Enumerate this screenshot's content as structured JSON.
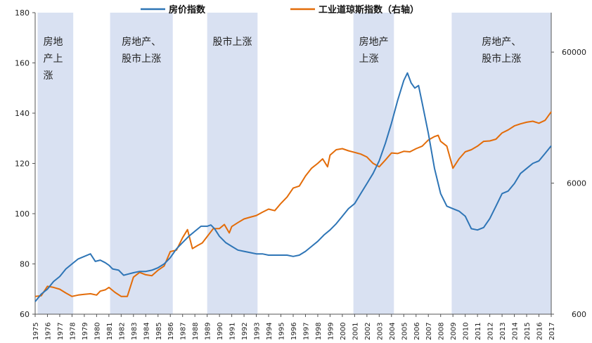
{
  "chart_data": {
    "type": "line",
    "x_categories": [
      "1975",
      "1976",
      "1977",
      "1978",
      "1979",
      "1980",
      "1981",
      "1982",
      "1983",
      "1984",
      "1985",
      "1986",
      "1987",
      "1988",
      "1989",
      "1990",
      "1991",
      "1992",
      "1993",
      "1994",
      "1995",
      "1996",
      "1997",
      "1998",
      "1999",
      "2000",
      "2001",
      "2002",
      "2003",
      "2004",
      "2005",
      "2006",
      "2007",
      "2008",
      "2009",
      "2010",
      "2011",
      "2012",
      "2013",
      "2014",
      "2015",
      "2016",
      "2017"
    ],
    "left_axis": {
      "min": 60,
      "max": 180,
      "ticks": [
        "60",
        "80",
        "100",
        "120",
        "140",
        "160",
        "180"
      ]
    },
    "right_axis": {
      "scale": "log",
      "min": 600,
      "max": 120000,
      "ticks": [
        "600",
        "6000",
        "60000"
      ]
    },
    "legend_position": "top",
    "series": [
      {
        "name": "房价指数",
        "axis": "left",
        "color": "#2e75b6",
        "points": [
          [
            1975.0,
            65
          ],
          [
            1975.5,
            68
          ],
          [
            1976.0,
            70
          ],
          [
            1976.5,
            73
          ],
          [
            1977.0,
            75
          ],
          [
            1977.5,
            78
          ],
          [
            1978.0,
            80
          ],
          [
            1978.5,
            82
          ],
          [
            1979.0,
            83
          ],
          [
            1979.5,
            84
          ],
          [
            1979.9,
            81
          ],
          [
            1980.3,
            81.5
          ],
          [
            1980.7,
            80.5
          ],
          [
            1981.0,
            79.5
          ],
          [
            1981.3,
            78
          ],
          [
            1981.8,
            77.5
          ],
          [
            1982.2,
            75.5
          ],
          [
            1982.6,
            76
          ],
          [
            1983.0,
            76.5
          ],
          [
            1983.5,
            77
          ],
          [
            1984.0,
            77
          ],
          [
            1984.5,
            77.5
          ],
          [
            1985.0,
            78.5
          ],
          [
            1985.5,
            80
          ],
          [
            1986.0,
            82.5
          ],
          [
            1986.5,
            86
          ],
          [
            1987.0,
            88.5
          ],
          [
            1987.5,
            91
          ],
          [
            1988.0,
            93
          ],
          [
            1988.5,
            95
          ],
          [
            1989.0,
            95
          ],
          [
            1989.3,
            95.5
          ],
          [
            1989.6,
            94
          ],
          [
            1990.0,
            91
          ],
          [
            1990.5,
            88.5
          ],
          [
            1991.0,
            87
          ],
          [
            1991.5,
            85.5
          ],
          [
            1992.0,
            85
          ],
          [
            1992.5,
            84.5
          ],
          [
            1993.0,
            84
          ],
          [
            1993.5,
            84
          ],
          [
            1994.0,
            83.5
          ],
          [
            1994.5,
            83.5
          ],
          [
            1995.0,
            83.5
          ],
          [
            1995.5,
            83.5
          ],
          [
            1996.0,
            83
          ],
          [
            1996.5,
            83.5
          ],
          [
            1997.0,
            85
          ],
          [
            1997.5,
            87
          ],
          [
            1998.0,
            89
          ],
          [
            1998.5,
            91.5
          ],
          [
            1999.0,
            93.5
          ],
          [
            1999.5,
            96
          ],
          [
            2000.0,
            99
          ],
          [
            2000.5,
            102
          ],
          [
            2001.0,
            104
          ],
          [
            2001.5,
            108
          ],
          [
            2002.0,
            112
          ],
          [
            2002.5,
            116
          ],
          [
            2003.0,
            121
          ],
          [
            2003.5,
            128
          ],
          [
            2004.0,
            136
          ],
          [
            2004.5,
            145
          ],
          [
            2005.0,
            153
          ],
          [
            2005.3,
            156
          ],
          [
            2005.6,
            152
          ],
          [
            2005.9,
            150
          ],
          [
            2006.2,
            151
          ],
          [
            2006.5,
            144
          ],
          [
            2007.0,
            132
          ],
          [
            2007.5,
            118
          ],
          [
            2008.0,
            108
          ],
          [
            2008.5,
            103
          ],
          [
            2009.0,
            102
          ],
          [
            2009.5,
            101
          ],
          [
            2010.0,
            99
          ],
          [
            2010.5,
            94
          ],
          [
            2011.0,
            93.5
          ],
          [
            2011.5,
            94.5
          ],
          [
            2012.0,
            98
          ],
          [
            2012.5,
            103
          ],
          [
            2013.0,
            108
          ],
          [
            2013.5,
            109
          ],
          [
            2014.0,
            112
          ],
          [
            2014.5,
            116
          ],
          [
            2015.0,
            118
          ],
          [
            2015.5,
            120
          ],
          [
            2016.0,
            121
          ],
          [
            2016.5,
            124
          ],
          [
            2017.0,
            127
          ]
        ]
      },
      {
        "name": "工业道琼斯指数（右轴）",
        "axis": "right",
        "color": "#e36c09",
        "points": [
          [
            1975.0,
            820
          ],
          [
            1975.5,
            830
          ],
          [
            1976.0,
            980
          ],
          [
            1976.5,
            960
          ],
          [
            1977.0,
            930
          ],
          [
            1977.5,
            870
          ],
          [
            1978.0,
            820
          ],
          [
            1978.5,
            840
          ],
          [
            1979.0,
            850
          ],
          [
            1979.5,
            860
          ],
          [
            1980.0,
            840
          ],
          [
            1980.3,
            900
          ],
          [
            1980.7,
            920
          ],
          [
            1981.0,
            960
          ],
          [
            1981.5,
            880
          ],
          [
            1982.0,
            820
          ],
          [
            1982.5,
            820
          ],
          [
            1983.0,
            1150
          ],
          [
            1983.5,
            1250
          ],
          [
            1984.0,
            1200
          ],
          [
            1984.5,
            1180
          ],
          [
            1985.0,
            1300
          ],
          [
            1985.5,
            1400
          ],
          [
            1986.0,
            1800
          ],
          [
            1986.5,
            1850
          ],
          [
            1987.0,
            2300
          ],
          [
            1987.4,
            2650
          ],
          [
            1987.8,
            1900
          ],
          [
            1988.2,
            2000
          ],
          [
            1988.6,
            2100
          ],
          [
            1989.0,
            2350
          ],
          [
            1989.5,
            2700
          ],
          [
            1990.0,
            2700
          ],
          [
            1990.4,
            2900
          ],
          [
            1990.8,
            2500
          ],
          [
            1991.0,
            2800
          ],
          [
            1991.5,
            3000
          ],
          [
            1992.0,
            3200
          ],
          [
            1992.5,
            3300
          ],
          [
            1993.0,
            3400
          ],
          [
            1993.5,
            3600
          ],
          [
            1994.0,
            3800
          ],
          [
            1994.5,
            3700
          ],
          [
            1995.0,
            4200
          ],
          [
            1995.5,
            4700
          ],
          [
            1996.0,
            5500
          ],
          [
            1996.5,
            5700
          ],
          [
            1997.0,
            6800
          ],
          [
            1997.5,
            7800
          ],
          [
            1998.0,
            8500
          ],
          [
            1998.4,
            9200
          ],
          [
            1998.8,
            8000
          ],
          [
            1999.0,
            9800
          ],
          [
            1999.5,
            10800
          ],
          [
            2000.0,
            11000
          ],
          [
            2000.5,
            10600
          ],
          [
            2001.0,
            10300
          ],
          [
            2001.5,
            10000
          ],
          [
            2002.0,
            9500
          ],
          [
            2002.5,
            8500
          ],
          [
            2003.0,
            8000
          ],
          [
            2003.5,
            9000
          ],
          [
            2004.0,
            10200
          ],
          [
            2004.5,
            10100
          ],
          [
            2005.0,
            10500
          ],
          [
            2005.5,
            10400
          ],
          [
            2006.0,
            11000
          ],
          [
            2006.5,
            11500
          ],
          [
            2007.0,
            12800
          ],
          [
            2007.5,
            13600
          ],
          [
            2007.8,
            13900
          ],
          [
            2008.0,
            12500
          ],
          [
            2008.5,
            11500
          ],
          [
            2009.0,
            7800
          ],
          [
            2009.5,
            9200
          ],
          [
            2010.0,
            10400
          ],
          [
            2010.5,
            10800
          ],
          [
            2011.0,
            11500
          ],
          [
            2011.5,
            12500
          ],
          [
            2012.0,
            12600
          ],
          [
            2012.5,
            13000
          ],
          [
            2013.0,
            14500
          ],
          [
            2013.5,
            15300
          ],
          [
            2014.0,
            16400
          ],
          [
            2014.5,
            17000
          ],
          [
            2015.0,
            17500
          ],
          [
            2015.5,
            17800
          ],
          [
            2016.0,
            17200
          ],
          [
            2016.5,
            18100
          ],
          [
            2017.0,
            21000
          ]
        ]
      }
    ],
    "shaded_regions": [
      {
        "from": 1975.2,
        "to": 1978.1,
        "label_lines": [
          "房地",
          "产上",
          "涨"
        ]
      },
      {
        "from": 1981.1,
        "to": 1986.2,
        "label_lines": [
          "房地产、",
          "股市上涨"
        ]
      },
      {
        "from": 1989.0,
        "to": 1993.1,
        "label_lines": [
          "股市上涨"
        ]
      },
      {
        "from": 2000.9,
        "to": 2004.2,
        "label_lines": [
          "房地产",
          "上涨"
        ]
      },
      {
        "from": 2008.9,
        "to": 2017.0,
        "label_lines": [
          "房地产、",
          "股市上涨"
        ]
      }
    ],
    "shade_color": "#d9e1f2"
  }
}
